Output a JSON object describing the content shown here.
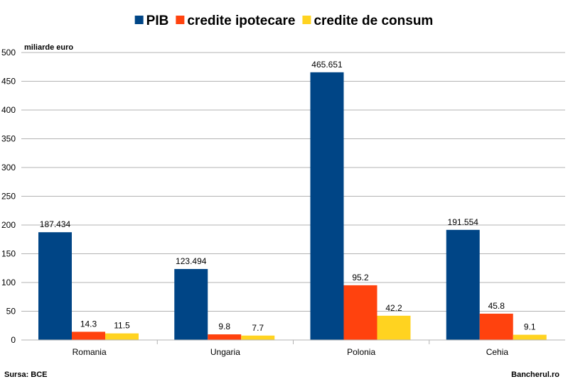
{
  "chart_data": {
    "type": "bar",
    "y_unit_label": "miliarde euro",
    "categories": [
      "Romania",
      "Ungaria",
      "Polonia",
      "Cehia"
    ],
    "series": [
      {
        "name": "PIB",
        "color": "#004586",
        "values": [
          187.434,
          123.494,
          465.651,
          191.554
        ],
        "labels": [
          "187.434",
          "123.494",
          "465.651",
          "191.554"
        ]
      },
      {
        "name": "credite ipotecare",
        "color": "#ff420e",
        "values": [
          14.3,
          9.8,
          95.2,
          45.8
        ],
        "labels": [
          "14.3",
          "9.8",
          "95.2",
          "45.8"
        ]
      },
      {
        "name": "credite de consum",
        "color": "#ffd320",
        "values": [
          11.5,
          7.7,
          42.2,
          9.1
        ],
        "labels": [
          "11.5",
          "7.7",
          "42.2",
          "9.1"
        ]
      }
    ],
    "ylim": [
      0,
      500
    ],
    "yticks": [
      0,
      50,
      100,
      150,
      200,
      250,
      300,
      350,
      400,
      450,
      500
    ],
    "grid": true,
    "legend_position": "top-center"
  },
  "footer": {
    "source": "Sursa:  BCE",
    "brand": "Bancherul.ro"
  }
}
